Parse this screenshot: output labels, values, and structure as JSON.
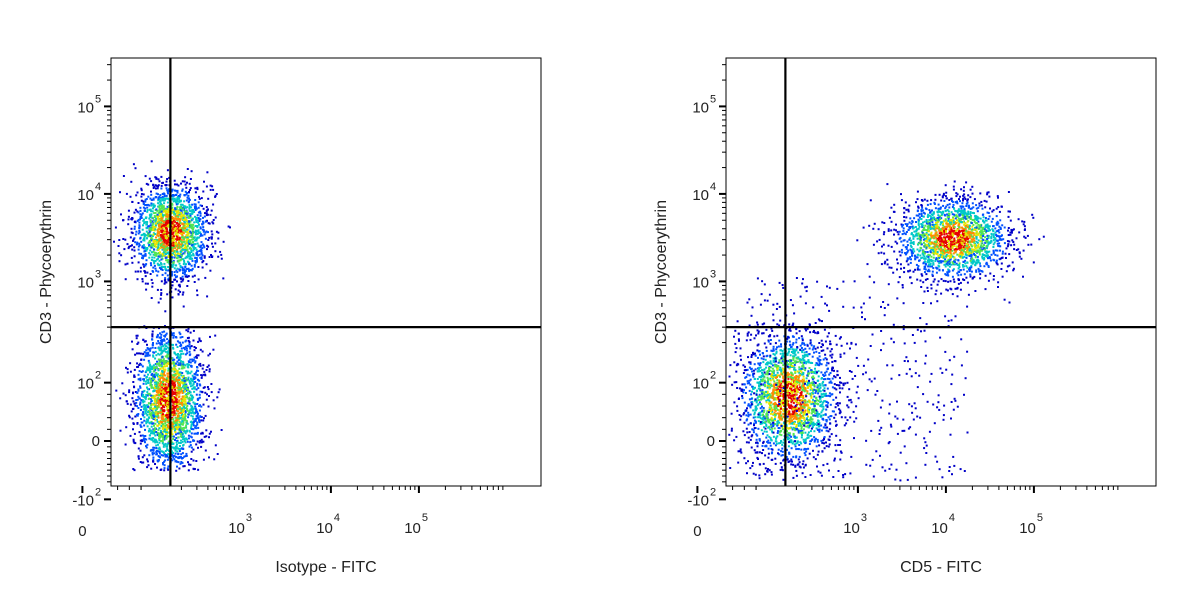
{
  "chart_data": [
    {
      "type": "scatter",
      "subtype": "flow-cytometry-density-dot-plot",
      "xlabel": "Isotype - FITC",
      "ylabel": "CD3 - Phycoerythrin",
      "x_scale": "biexponential",
      "y_scale": "biexponential",
      "x_ticks": [
        {
          "base": "0",
          "exp": ""
        },
        {
          "base": "10",
          "exp": "3"
        },
        {
          "base": "10",
          "exp": "4"
        },
        {
          "base": "10",
          "exp": "5"
        }
      ],
      "y_ticks": [
        {
          "base": "10",
          "exp": "5"
        },
        {
          "base": "10",
          "exp": "4"
        },
        {
          "base": "10",
          "exp": "3"
        },
        {
          "base": "10",
          "exp": "2"
        },
        {
          "base": "0",
          "exp": ""
        },
        {
          "base": "-10",
          "exp": "2"
        }
      ],
      "quadrant_gate": {
        "x": 150,
        "y": 300
      },
      "populations": [
        {
          "name": "CD3+ (upper left)",
          "x_center": 0,
          "y_center": 2500,
          "count_relative": 0.45
        },
        {
          "name": "CD3- (lower left)",
          "x_center": 0,
          "y_center": 20,
          "count_relative": 0.55
        }
      ],
      "density_colors": [
        "#0000c8",
        "#0050ff",
        "#00c8c8",
        "#50e650",
        "#e6e600",
        "#ff8c00",
        "#e60000"
      ]
    },
    {
      "type": "scatter",
      "subtype": "flow-cytometry-density-dot-plot",
      "xlabel": "CD5 - FITC",
      "ylabel": "CD3 - Phycoerythrin",
      "x_scale": "biexponential",
      "y_scale": "biexponential",
      "x_ticks": [
        {
          "base": "0",
          "exp": ""
        },
        {
          "base": "10",
          "exp": "3"
        },
        {
          "base": "10",
          "exp": "4"
        },
        {
          "base": "10",
          "exp": "5"
        }
      ],
      "y_ticks": [
        {
          "base": "10",
          "exp": "5"
        },
        {
          "base": "10",
          "exp": "4"
        },
        {
          "base": "10",
          "exp": "3"
        },
        {
          "base": "10",
          "exp": "2"
        },
        {
          "base": "0",
          "exp": ""
        },
        {
          "base": "-10",
          "exp": "2"
        }
      ],
      "quadrant_gate": {
        "x": 150,
        "y": 300
      },
      "populations": [
        {
          "name": "CD3+ CD5+ (upper right)",
          "x_center": 1200,
          "y_center": 2500,
          "count_relative": 0.42
        },
        {
          "name": "CD3- CD5- (lower left)",
          "x_center": 0,
          "y_center": 20,
          "count_relative": 0.5
        },
        {
          "name": "scattered events",
          "x_center": 300,
          "y_center": 100,
          "count_relative": 0.08
        }
      ],
      "density_colors": [
        "#0000c8",
        "#0050ff",
        "#00c8c8",
        "#50e650",
        "#e6e600",
        "#ff8c00",
        "#e60000"
      ]
    }
  ]
}
